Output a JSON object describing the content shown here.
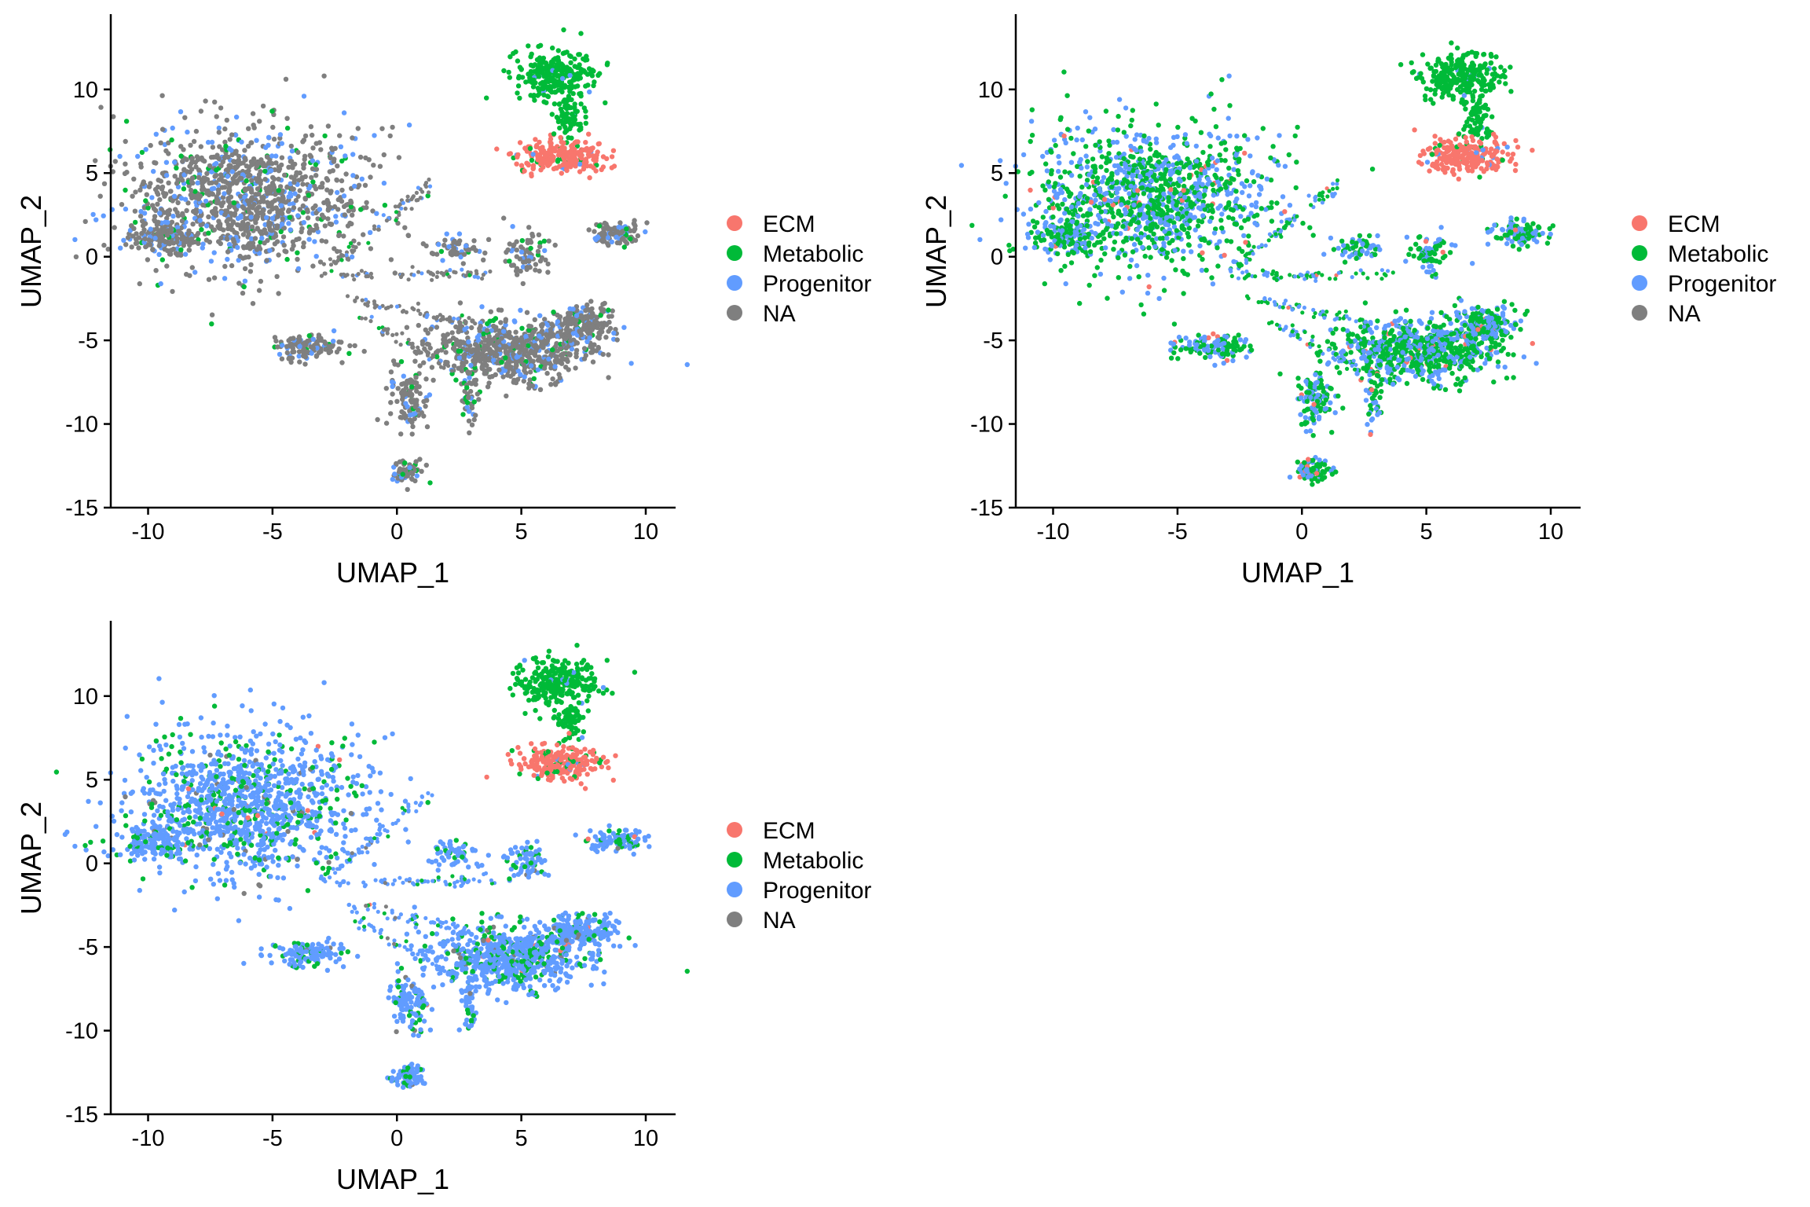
{
  "colors": {
    "ECM": "#F8766D",
    "Metabolic": "#00BA38",
    "Progenitor": "#619CFF",
    "NA": "#7F7F7F",
    "axis": "#000000"
  },
  "chart_data": [
    {
      "type": "scatter",
      "title": "",
      "xlabel": "UMAP_1",
      "ylabel": "UMAP_2",
      "xlim": [
        -11.5,
        11.2
      ],
      "ylim": [
        -15,
        14.5
      ],
      "xticks": [
        -10,
        -5,
        0,
        5,
        10
      ],
      "yticks": [
        -15,
        -10,
        -5,
        0,
        5,
        10
      ],
      "xtick_labels": [
        "-10",
        "-5",
        "0",
        "5",
        "10"
      ],
      "ytick_labels": [
        "-15",
        "-10",
        "-5",
        "0",
        "5",
        "10"
      ],
      "legend_position": "right",
      "legend": [
        "ECM",
        "Metabolic",
        "Progenitor",
        "NA"
      ],
      "grid": false,
      "mix": {
        "ecm_top": 0.9,
        "top_green": 0.97,
        "main": {
          "NA": 0.75,
          "Progenitor": 0.18,
          "Metabolic": 0.07
        }
      }
    },
    {
      "type": "scatter",
      "title": "",
      "xlabel": "UMAP_1",
      "ylabel": "UMAP_2",
      "xlim": [
        -11.5,
        11.2
      ],
      "ylim": [
        -15,
        14.5
      ],
      "xticks": [
        -10,
        -5,
        0,
        5,
        10
      ],
      "yticks": [
        -15,
        -10,
        -5,
        0,
        5,
        10
      ],
      "xtick_labels": [
        "-10",
        "-5",
        "0",
        "5",
        "10"
      ],
      "ytick_labels": [
        "-15",
        "-10",
        "-5",
        "0",
        "5",
        "10"
      ],
      "legend_position": "right",
      "legend": [
        "ECM",
        "Metabolic",
        "Progenitor",
        "NA"
      ],
      "grid": false,
      "mix": {
        "ecm_top": 0.9,
        "top_green": 0.97,
        "main": {
          "Metabolic": 0.55,
          "Progenitor": 0.42,
          "ECM": 0.03
        }
      }
    },
    {
      "type": "scatter",
      "title": "",
      "xlabel": "UMAP_1",
      "ylabel": "UMAP_2",
      "xlim": [
        -11.5,
        11.2
      ],
      "ylim": [
        -15,
        14.5
      ],
      "xticks": [
        -10,
        -5,
        0,
        5,
        10
      ],
      "yticks": [
        -15,
        -10,
        -5,
        0,
        5,
        10
      ],
      "xtick_labels": [
        "-10",
        "-5",
        "0",
        "5",
        "10"
      ],
      "ytick_labels": [
        "-15",
        "-10",
        "-5",
        "0",
        "5",
        "10"
      ],
      "legend_position": "right",
      "legend": [
        "ECM",
        "Metabolic",
        "Progenitor",
        "NA"
      ],
      "grid": false,
      "mix": {
        "ecm_top": 0.85,
        "top_green": 0.97,
        "main": {
          "Progenitor": 0.78,
          "Metabolic": 0.18,
          "NA": 0.03,
          "ECM": 0.01
        }
      }
    }
  ],
  "clusters": [
    {
      "name": "upper-left-blob",
      "cx": -6.0,
      "cy": 3.5,
      "rx": 4.2,
      "ry": 3.9,
      "n": 1200,
      "region": "main"
    },
    {
      "name": "upper-left-tail",
      "cx": -9.5,
      "cy": 1.2,
      "rx": 1.2,
      "ry": 0.9,
      "n": 140,
      "region": "main"
    },
    {
      "name": "top-metabolic",
      "cx": 6.4,
      "cy": 10.8,
      "rx": 1.5,
      "ry": 1.4,
      "n": 260,
      "region": "top_green"
    },
    {
      "name": "top-metabolic-stem",
      "cx": 7.0,
      "cy": 8.4,
      "rx": 0.5,
      "ry": 1.3,
      "n": 70,
      "region": "top_green"
    },
    {
      "name": "ecm-cluster",
      "cx": 6.6,
      "cy": 6.0,
      "rx": 1.6,
      "ry": 0.9,
      "n": 240,
      "region": "ecm_top"
    },
    {
      "name": "right-small",
      "cx": 8.8,
      "cy": 1.4,
      "rx": 1.0,
      "ry": 0.6,
      "n": 110,
      "region": "main"
    },
    {
      "name": "mid-small",
      "cx": 5.2,
      "cy": 0.2,
      "rx": 0.7,
      "ry": 1.2,
      "n": 70,
      "region": "main"
    },
    {
      "name": "mid-arm",
      "cx": 2.4,
      "cy": 0.5,
      "rx": 1.0,
      "ry": 0.7,
      "n": 60,
      "region": "main"
    },
    {
      "name": "lower-right-blob",
      "cx": 4.6,
      "cy": -5.6,
      "rx": 3.0,
      "ry": 1.7,
      "n": 700,
      "region": "main"
    },
    {
      "name": "lower-right-arm",
      "cx": 7.4,
      "cy": -4.0,
      "rx": 1.2,
      "ry": 1.0,
      "n": 180,
      "region": "main"
    },
    {
      "name": "lower-center",
      "cx": 0.5,
      "cy": -8.5,
      "rx": 0.7,
      "ry": 1.5,
      "n": 110,
      "region": "main"
    },
    {
      "name": "bottom-cluster",
      "cx": 0.4,
      "cy": -12.8,
      "rx": 0.6,
      "ry": 0.6,
      "n": 80,
      "region": "main"
    },
    {
      "name": "left-arm",
      "cx": -3.6,
      "cy": -5.4,
      "rx": 1.4,
      "ry": 0.7,
      "n": 120,
      "region": "main"
    },
    {
      "name": "lower-stem",
      "cx": 2.9,
      "cy": -8.5,
      "rx": 0.3,
      "ry": 1.5,
      "n": 40,
      "region": "main"
    }
  ],
  "streams": [
    {
      "name": "upper-stream",
      "from": [
        -3,
        -1
      ],
      "to": [
        1.4,
        4.4
      ],
      "n": 70
    },
    {
      "name": "mid-stream",
      "from": [
        -2.5,
        -1.2
      ],
      "to": [
        3.8,
        -1.0
      ],
      "n": 60
    },
    {
      "name": "lower-stream",
      "from": [
        -2.0,
        -2.5
      ],
      "to": [
        3.0,
        -4.0
      ],
      "n": 60
    },
    {
      "name": "branch-stream",
      "from": [
        -1.5,
        -3.5
      ],
      "to": [
        2.5,
        -7.0
      ],
      "n": 45
    }
  ]
}
